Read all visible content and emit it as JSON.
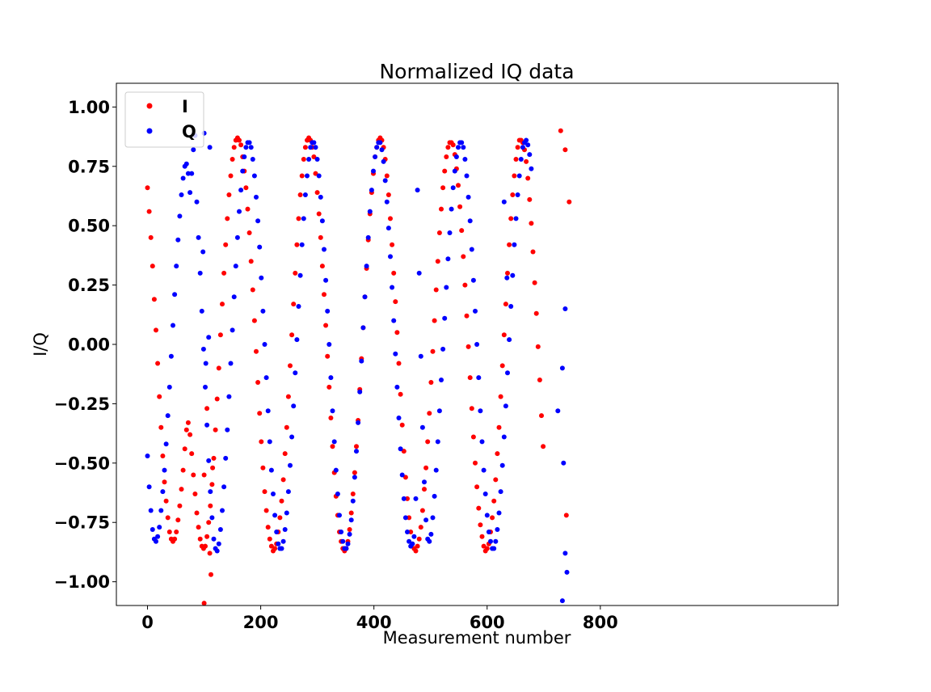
{
  "chart_data": {
    "type": "scatter",
    "title": "Normalized IQ data",
    "xlabel": "Measurement number",
    "ylabel": "I/Q",
    "xlim": [
      -55,
      1220
    ],
    "ylim": [
      -1.1,
      1.1
    ],
    "x_ticks": [
      0,
      200,
      400,
      600,
      800
    ],
    "x_tick_labels": [
      "0",
      "200",
      "400",
      "600",
      "800"
    ],
    "y_ticks": [
      1.0,
      0.75,
      0.5,
      0.25,
      0.0,
      -0.25,
      -0.5,
      -0.75,
      -1.0
    ],
    "y_tick_labels": [
      "1.00",
      "0.75",
      "0.50",
      "0.25",
      "0.00",
      "−0.25",
      "−0.50",
      "−0.75",
      "−1.00"
    ],
    "grid": false,
    "legend_position": "top-left",
    "x_step": 3,
    "series": [
      {
        "name": "I",
        "color": "#ff0000",
        "y": [
          0.66,
          0.56,
          0.45,
          0.33,
          0.19,
          0.06,
          -0.08,
          -0.22,
          -0.35,
          -0.47,
          -0.58,
          -0.66,
          -0.73,
          -0.79,
          -0.82,
          -0.83,
          -0.82,
          -0.79,
          -0.74,
          -0.68,
          -0.61,
          -0.53,
          -0.44,
          -0.36,
          -0.33,
          -0.38,
          -0.46,
          -0.55,
          -0.63,
          -0.71,
          -0.77,
          -0.82,
          -0.85,
          -0.86,
          -0.85,
          -0.81,
          -0.75,
          -0.68,
          -0.59,
          -0.48,
          -0.36,
          -0.23,
          -0.1,
          0.04,
          0.17,
          0.3,
          0.42,
          0.53,
          0.63,
          0.71,
          0.78,
          0.83,
          0.86,
          0.87,
          0.86,
          0.84,
          0.79,
          0.73,
          0.66,
          0.57,
          0.47,
          0.35,
          0.23,
          0.1,
          -0.03,
          -0.16,
          -0.29,
          -0.41,
          -0.52,
          -0.62,
          -0.7,
          -0.77,
          -0.82,
          -0.85,
          -0.87,
          -0.86,
          -0.84,
          -0.79,
          -0.73,
          -0.66,
          -0.57,
          -0.46,
          -0.35,
          -0.22,
          -0.09,
          0.04,
          0.17,
          0.3,
          0.42,
          0.53,
          0.63,
          0.71,
          0.78,
          0.83,
          0.86,
          0.87,
          0.86,
          0.83,
          0.79,
          0.72,
          0.64,
          0.55,
          0.45,
          0.33,
          0.21,
          0.08,
          -0.05,
          -0.18,
          -0.31,
          -0.43,
          -0.54,
          -0.64,
          -0.72,
          -0.79,
          -0.83,
          -0.86,
          -0.87,
          -0.86,
          -0.83,
          -0.78,
          -0.71,
          -0.63,
          -0.54,
          -0.43,
          -0.32,
          -0.19,
          -0.06,
          0.07,
          0.2,
          0.32,
          0.44,
          0.55,
          0.64,
          0.72,
          0.79,
          0.83,
          0.86,
          0.87,
          0.86,
          0.83,
          0.78,
          0.71,
          0.63,
          0.53,
          0.42,
          0.3,
          0.18,
          0.05,
          -0.08,
          -0.21,
          -0.34,
          -0.45,
          -0.56,
          -0.65,
          -0.73,
          -0.79,
          -0.84,
          -0.86,
          -0.87,
          -0.85,
          -0.82,
          -0.77,
          -0.7,
          -0.61,
          -0.52,
          -0.41,
          -0.29,
          -0.16,
          -0.03,
          0.1,
          0.23,
          0.35,
          0.47,
          0.57,
          0.66,
          0.73,
          0.79,
          0.83,
          0.85,
          0.85,
          0.84,
          0.8,
          0.74,
          0.67,
          0.58,
          0.48,
          0.37,
          0.25,
          0.12,
          -0.01,
          -0.14,
          -0.27,
          -0.39,
          -0.5,
          -0.6,
          -0.69,
          -0.76,
          -0.81,
          -0.85,
          -0.87,
          -0.86,
          -0.84,
          -0.79,
          -0.73,
          -0.66,
          -0.57,
          -0.46,
          -0.35,
          -0.22,
          -0.09,
          0.04,
          0.17,
          0.3,
          0.42,
          0.53,
          0.63,
          0.71,
          0.78,
          0.83,
          0.86,
          0.86,
          0.85,
          0.82,
          0.77,
          0.7,
          0.61,
          0.51,
          0.39,
          0.26,
          0.13,
          -0.01,
          -0.15,
          -0.3,
          -0.43
        ]
      },
      {
        "name": "Q",
        "color": "#0000ff",
        "y": [
          -0.47,
          -0.6,
          -0.7,
          -0.78,
          -0.82,
          -0.83,
          -0.81,
          -0.77,
          -0.7,
          -0.62,
          -0.53,
          -0.42,
          -0.3,
          -0.18,
          -0.05,
          0.08,
          0.21,
          0.33,
          0.44,
          0.54,
          0.63,
          0.7,
          0.75,
          0.76,
          0.72,
          0.64,
          0.72,
          0.82,
          0.88,
          0.6,
          0.45,
          0.3,
          0.14,
          -0.02,
          -0.18,
          -0.34,
          -0.49,
          -0.62,
          -0.73,
          -0.82,
          -0.86,
          -0.87,
          -0.84,
          -0.78,
          -0.7,
          -0.6,
          -0.48,
          -0.36,
          -0.22,
          -0.08,
          0.06,
          0.2,
          0.33,
          0.45,
          0.56,
          0.65,
          0.73,
          0.79,
          0.83,
          0.85,
          0.85,
          0.83,
          0.78,
          0.71,
          0.62,
          0.52,
          0.41,
          0.28,
          0.14,
          0.0,
          -0.14,
          -0.28,
          -0.41,
          -0.53,
          -0.63,
          -0.72,
          -0.79,
          -0.84,
          -0.86,
          -0.86,
          -0.83,
          -0.78,
          -0.71,
          -0.62,
          -0.51,
          -0.39,
          -0.26,
          -0.12,
          0.02,
          0.16,
          0.29,
          0.42,
          0.53,
          0.63,
          0.71,
          0.78,
          0.83,
          0.85,
          0.85,
          0.83,
          0.78,
          0.71,
          0.62,
          0.52,
          0.4,
          0.27,
          0.14,
          0.0,
          -0.14,
          -0.28,
          -0.41,
          -0.53,
          -0.63,
          -0.72,
          -0.79,
          -0.83,
          -0.86,
          -0.86,
          -0.84,
          -0.8,
          -0.74,
          -0.66,
          -0.56,
          -0.45,
          -0.33,
          -0.2,
          -0.07,
          0.07,
          0.2,
          0.33,
          0.45,
          0.56,
          0.65,
          0.73,
          0.79,
          0.83,
          0.85,
          0.85,
          0.82,
          0.77,
          0.69,
          0.6,
          0.49,
          0.37,
          0.24,
          0.1,
          -0.04,
          -0.18,
          -0.31,
          -0.44,
          -0.55,
          -0.65,
          -0.73,
          -0.79,
          -0.83,
          -0.85,
          -0.84,
          -0.81,
          -0.65,
          0.65,
          0.3,
          -0.05,
          -0.35,
          -0.58,
          -0.74,
          -0.82,
          -0.83,
          -0.8,
          -0.73,
          -0.64,
          -0.53,
          -0.41,
          -0.28,
          -0.15,
          -0.02,
          0.11,
          0.24,
          0.36,
          0.47,
          0.57,
          0.66,
          0.73,
          0.79,
          0.83,
          0.85,
          0.85,
          0.83,
          0.78,
          0.71,
          0.62,
          0.52,
          0.4,
          0.27,
          0.14,
          0.0,
          -0.14,
          -0.28,
          -0.41,
          -0.53,
          -0.63,
          -0.72,
          -0.79,
          -0.83,
          -0.86,
          -0.86,
          -0.83,
          -0.78,
          -0.71,
          -0.62,
          -0.51,
          -0.39,
          -0.26,
          -0.12,
          0.02,
          0.16,
          0.29,
          0.42,
          0.53,
          0.63,
          0.71,
          0.78,
          0.83,
          0.85,
          0.86,
          0.84,
          0.8,
          0.74
        ]
      }
    ],
    "extra_points": [
      {
        "series": "I",
        "x": 100,
        "y": -1.09
      },
      {
        "series": "I",
        "x": 110,
        "y": -0.88
      },
      {
        "series": "I",
        "x": 112,
        "y": -0.97
      },
      {
        "series": "I",
        "x": 115,
        "y": -0.52
      },
      {
        "series": "I",
        "x": 100,
        "y": -0.55
      },
      {
        "series": "I",
        "x": 105,
        "y": -0.27
      },
      {
        "series": "I",
        "x": 730,
        "y": 0.9
      },
      {
        "series": "I",
        "x": 738,
        "y": 0.82
      },
      {
        "series": "I",
        "x": 740,
        "y": -0.72
      },
      {
        "series": "I",
        "x": 745,
        "y": 0.6
      },
      {
        "series": "Q",
        "x": 100,
        "y": 0.89
      },
      {
        "series": "Q",
        "x": 110,
        "y": 0.83
      },
      {
        "series": "Q",
        "x": 103,
        "y": -0.08
      },
      {
        "series": "Q",
        "x": 108,
        "y": 0.03
      },
      {
        "series": "Q",
        "x": 98,
        "y": 0.39
      },
      {
        "series": "Q",
        "x": 630,
        "y": 0.6
      },
      {
        "series": "Q",
        "x": 635,
        "y": 0.28
      },
      {
        "series": "Q",
        "x": 733,
        "y": -1.08
      },
      {
        "series": "Q",
        "x": 738,
        "y": -0.88
      },
      {
        "series": "Q",
        "x": 741,
        "y": -0.96
      },
      {
        "series": "Q",
        "x": 733,
        "y": -0.1
      },
      {
        "series": "Q",
        "x": 735,
        "y": -0.5
      },
      {
        "series": "Q",
        "x": 738,
        "y": 0.15
      },
      {
        "series": "Q",
        "x": 725,
        "y": -0.28
      }
    ]
  }
}
